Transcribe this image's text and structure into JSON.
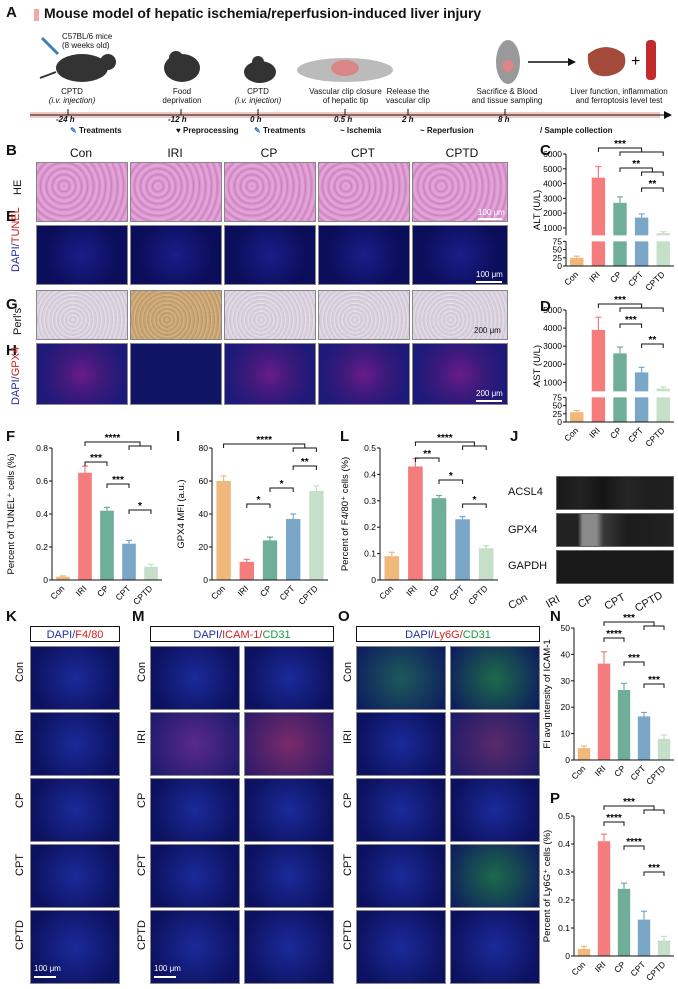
{
  "panelA": {
    "letter": "A",
    "title": "Mouse model of hepatic ischemia/reperfusion-induced liver injury",
    "mice_label": "C57BL/6 mice",
    "mice_age": "(8 weeks old)",
    "steps": [
      {
        "line1": "CPTD",
        "line2": "(i.v. injection)",
        "time": "-24 h"
      },
      {
        "line1": "Food",
        "line2": "deprivation",
        "time": "-12 h"
      },
      {
        "line1": "CPTD",
        "line2": "(i.v. injection)",
        "time": "0 h"
      },
      {
        "line1": "Vascular clip closure",
        "line2": "of hepatic tip",
        "time": "0.5 h"
      },
      {
        "line1": "Release the",
        "line2": "vascular clip",
        "time": "2 h"
      },
      {
        "line1": "Sacrifice & Blood",
        "line2": "and tissue sampling",
        "time": "8 h"
      },
      {
        "line1": "Liver function, inflammation",
        "line2": "and ferroptosis level test",
        "time": ""
      }
    ],
    "legend": [
      "Treatments",
      "Preprocessing",
      "Treatments",
      "Ischemia",
      "Reperfusion",
      "Sample collection"
    ]
  },
  "groups": [
    "Con",
    "IRI",
    "CP",
    "CPT",
    "CPTD"
  ],
  "colors": {
    "Con": "#f0b87a",
    "IRI": "#f47c7c",
    "CP": "#6fae98",
    "CPT": "#7aa7c7",
    "CPTD": "#c6dfc9"
  },
  "panelB": {
    "letter": "B",
    "row": "HE",
    "scale": "100 μm"
  },
  "panelE": {
    "letter": "E",
    "row_a": "DAPI/",
    "row_b": "TUNEL",
    "scale": "100 μm"
  },
  "panelG": {
    "letter": "G",
    "row": "Perl's",
    "scale": "200 μm"
  },
  "panelH": {
    "letter": "H",
    "row_a": "DAPI/",
    "row_b": "GPX4",
    "scale": "200 μm"
  },
  "panelC": {
    "letter": "C",
    "ylabel": "ALT (U/L)",
    "sig": [
      "***",
      "**",
      "**"
    ],
    "chart_data": {
      "type": "bar",
      "categories": [
        "Con",
        "IRI",
        "CP",
        "CPT",
        "CPTD"
      ],
      "values": [
        25,
        4400,
        2700,
        1700,
        650
      ],
      "errors": [
        5,
        750,
        400,
        250,
        100
      ],
      "ylim": [
        0,
        6000
      ],
      "break": [
        75,
        500
      ],
      "ticks_top": [
        1000,
        2000,
        3000,
        4000,
        5000,
        6000
      ],
      "ticks_bottom": [
        0,
        25,
        50,
        75
      ]
    }
  },
  "panelD": {
    "letter": "D",
    "ylabel": "AST (U/L)",
    "sig": [
      "***",
      "***",
      "**"
    ],
    "chart_data": {
      "type": "bar",
      "categories": [
        "Con",
        "IRI",
        "CP",
        "CPT",
        "CPTD"
      ],
      "values": [
        30,
        3900,
        2600,
        1550,
        650
      ],
      "errors": [
        5,
        700,
        350,
        280,
        100
      ],
      "ylim": [
        0,
        5000
      ],
      "break": [
        75,
        500
      ],
      "ticks_top": [
        1000,
        2000,
        3000,
        4000,
        5000
      ],
      "ticks_bottom": [
        0,
        25,
        50,
        75
      ]
    }
  },
  "panelF": {
    "letter": "F",
    "ylabel": "Percent of TUNEL⁺ cells (%)",
    "sig": [
      "****",
      "***",
      "***",
      "*"
    ],
    "chart_data": {
      "type": "bar",
      "categories": [
        "Con",
        "IRI",
        "CP",
        "CPT",
        "CPTD"
      ],
      "values": [
        0.02,
        0.65,
        0.42,
        0.22,
        0.08
      ],
      "errors": [
        0.005,
        0.04,
        0.02,
        0.02,
        0.015
      ],
      "ylim": [
        0,
        0.8
      ],
      "ticks": [
        0.0,
        0.2,
        0.4,
        0.6,
        0.8
      ]
    }
  },
  "panelI": {
    "letter": "I",
    "ylabel": "GPX4 MFI (a.u.)",
    "sig": [
      "****",
      "**",
      "*",
      "*"
    ],
    "chart_data": {
      "type": "bar",
      "categories": [
        "Con",
        "IRI",
        "CP",
        "CPT",
        "CPTD"
      ],
      "values": [
        60,
        11,
        24,
        37,
        54
      ],
      "errors": [
        3,
        1.5,
        2,
        3,
        3
      ],
      "ylim": [
        0,
        80
      ],
      "ticks": [
        0,
        20,
        40,
        60,
        80
      ]
    }
  },
  "panelL": {
    "letter": "L",
    "ylabel": "Percent of F4/80⁺ cells (%)",
    "sig": [
      "****",
      "**",
      "*",
      "*"
    ],
    "chart_data": {
      "type": "bar",
      "categories": [
        "Con",
        "IRI",
        "CP",
        "CPT",
        "CPTD"
      ],
      "values": [
        0.09,
        0.43,
        0.31,
        0.23,
        0.12
      ],
      "errors": [
        0.015,
        0.03,
        0.01,
        0.01,
        0.01
      ],
      "ylim": [
        0,
        0.5
      ],
      "ticks": [
        0.0,
        0.1,
        0.2,
        0.3,
        0.4,
        0.5
      ]
    }
  },
  "panelJ": {
    "letter": "J",
    "bands": [
      "ACSL4",
      "GPX4",
      "GAPDH"
    ]
  },
  "panelK": {
    "letter": "K",
    "hdr_a": "DAPI/",
    "hdr_b": "F4/80",
    "scale": "100 μm"
  },
  "panelM": {
    "letter": "M",
    "hdr_a": "DAPI/",
    "hdr_b": "ICAM-1/",
    "hdr_c": "CD31",
    "scale": "100 μm"
  },
  "panelO": {
    "letter": "O",
    "hdr_a": "DAPI/",
    "hdr_b": "Ly6G/",
    "hdr_c": "CD31"
  },
  "panelN": {
    "letter": "N",
    "ylabel": "FI avg intensity of ICAM-1",
    "sig": [
      "***",
      "****",
      "***",
      "***"
    ],
    "chart_data": {
      "type": "bar",
      "categories": [
        "Con",
        "IRI",
        "CP",
        "CPT",
        "CPTD"
      ],
      "values": [
        4.5,
        36.5,
        26.5,
        16.5,
        8
      ],
      "errors": [
        0.8,
        4.5,
        2.5,
        1.5,
        1.5
      ],
      "ylim": [
        0,
        50
      ],
      "ticks": [
        0,
        10,
        20,
        30,
        40,
        50
      ]
    }
  },
  "panelP": {
    "letter": "P",
    "ylabel": "Percent of Ly6G⁺ cells (%)",
    "sig": [
      "***",
      "****",
      "****",
      "***"
    ],
    "chart_data": {
      "type": "bar",
      "categories": [
        "Con",
        "IRI",
        "CP",
        "CPT",
        "CPTD"
      ],
      "values": [
        0.025,
        0.41,
        0.24,
        0.13,
        0.055
      ],
      "errors": [
        0.01,
        0.025,
        0.02,
        0.03,
        0.015
      ],
      "ylim": [
        0,
        0.5
      ],
      "ticks": [
        0.0,
        0.1,
        0.2,
        0.3,
        0.4,
        0.5
      ]
    }
  }
}
